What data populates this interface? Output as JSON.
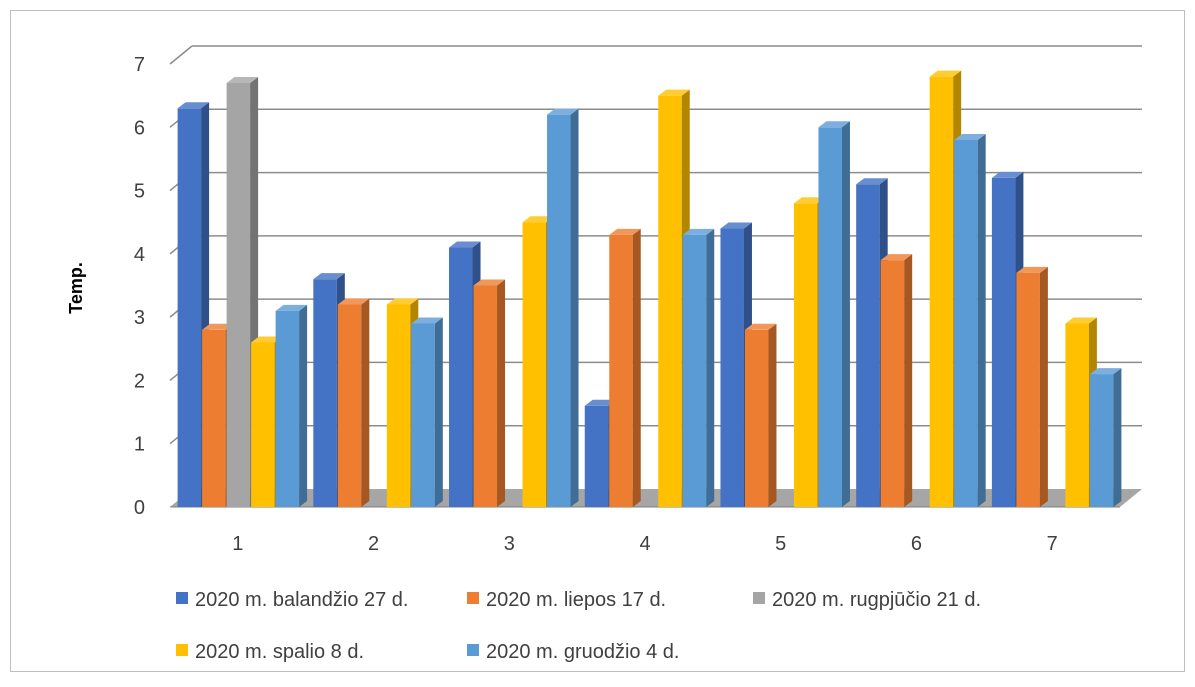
{
  "chart_data": {
    "type": "bar",
    "style": "3d-clustered-column",
    "ylabel": "Temp.",
    "xlabel": "",
    "title": "",
    "ylim": [
      0,
      7
    ],
    "yticks": [
      "0",
      "1",
      "2",
      "3",
      "4",
      "5",
      "6",
      "7"
    ],
    "grid": true,
    "legend_position": "bottom",
    "categories": [
      "1",
      "2",
      "3",
      "4",
      "5",
      "6",
      "7"
    ],
    "series": [
      {
        "name": "2020 m. balandžio 27 d.",
        "color": "#4472C4",
        "values": [
          6.3,
          3.6,
          4.1,
          1.6,
          4.4,
          5.1,
          5.2
        ]
      },
      {
        "name": "2020 m. liepos 17 d.",
        "color": "#ED7D31",
        "values": [
          2.8,
          3.2,
          3.5,
          4.3,
          2.8,
          3.9,
          3.7
        ]
      },
      {
        "name": "2020 m. rugpjūčio 21 d.",
        "color": "#A5A5A5",
        "values": [
          6.7,
          0,
          0,
          0,
          0,
          0,
          0
        ]
      },
      {
        "name": "2020 m. spalio 8 d.",
        "color": "#FFC000",
        "values": [
          2.6,
          3.2,
          4.5,
          6.5,
          4.8,
          6.8,
          2.9
        ]
      },
      {
        "name": "2020 m. gruodžio 4 d.",
        "color": "#5B9BD5",
        "values": [
          3.1,
          2.9,
          6.2,
          4.3,
          6.0,
          5.8,
          2.1
        ]
      }
    ]
  }
}
